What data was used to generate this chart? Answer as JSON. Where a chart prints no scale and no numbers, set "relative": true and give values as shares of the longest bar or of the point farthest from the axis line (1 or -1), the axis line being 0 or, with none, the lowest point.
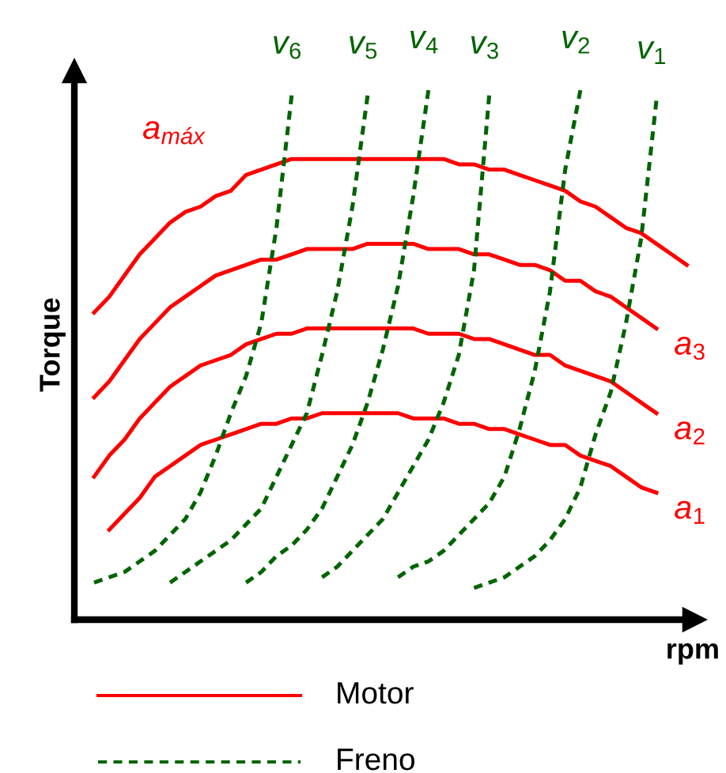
{
  "chart_data": {
    "type": "line",
    "relative": true,
    "xlabel": "rpm",
    "ylabel": "Torque",
    "grid": false,
    "marker": "none",
    "categories": [
      null,
      null,
      null,
      null,
      null,
      null,
      null,
      null,
      null,
      null,
      null,
      null,
      null,
      null,
      null,
      null,
      null,
      null,
      null,
      null,
      null,
      null,
      null,
      null,
      null,
      null,
      null,
      null,
      null,
      null,
      null,
      null,
      null,
      null,
      null,
      null,
      null,
      null,
      null,
      null
    ],
    "annotations": [
      "Motor",
      "Freno"
    ],
    "series": [
      {
        "name": "a$_{máx}$",
        "color": "#ff0000",
        "line_style": "solid",
        "values": [
          0.58,
          0.61,
          0.65,
          0.69,
          0.72,
          0.75,
          0.77,
          0.78,
          0.8,
          0.81,
          0.84,
          0.85,
          0.86,
          0.87,
          0.87,
          0.87,
          0.87,
          0.87,
          0.87,
          0.87,
          0.87,
          0.87,
          0.87,
          0.87,
          0.86,
          0.86,
          0.85,
          0.85,
          0.84,
          0.83,
          0.82,
          0.81,
          0.79,
          0.78,
          0.76,
          0.74,
          0.73,
          0.71,
          0.69,
          0.67
        ]
      },
      {
        "name": "a$_{3}$",
        "color": "#ff0000",
        "line_style": "solid",
        "values": [
          0.42,
          0.45,
          0.49,
          0.53,
          0.56,
          0.59,
          0.61,
          0.63,
          0.65,
          0.66,
          0.67,
          0.68,
          0.68,
          0.69,
          0.7,
          0.7,
          0.7,
          0.7,
          0.71,
          0.71,
          0.71,
          0.71,
          0.7,
          0.7,
          0.7,
          0.69,
          0.69,
          0.68,
          0.67,
          0.67,
          0.66,
          0.64,
          0.64,
          0.62,
          0.61,
          0.59,
          0.57,
          0.55,
          null,
          null
        ]
      },
      {
        "name": "a$_{2}$",
        "color": "#ff0000",
        "line_style": "solid",
        "values": [
          0.27,
          0.31,
          0.34,
          0.38,
          0.41,
          0.44,
          0.46,
          0.48,
          0.49,
          0.5,
          0.52,
          0.53,
          0.54,
          0.54,
          0.55,
          0.55,
          0.55,
          0.55,
          0.55,
          0.55,
          0.55,
          0.55,
          0.54,
          0.54,
          0.54,
          0.53,
          0.53,
          0.52,
          0.51,
          0.5,
          0.5,
          0.48,
          0.47,
          0.46,
          0.45,
          0.43,
          0.41,
          0.39,
          null,
          null
        ]
      },
      {
        "name": "a$_{1}$",
        "color": "#ff0000",
        "line_style": "solid",
        "values": [
          null,
          0.17,
          0.2,
          0.23,
          0.27,
          0.29,
          0.31,
          0.33,
          0.34,
          0.35,
          0.36,
          0.37,
          0.37,
          0.38,
          0.38,
          0.39,
          0.39,
          0.39,
          0.39,
          0.39,
          0.39,
          0.38,
          0.38,
          0.38,
          0.37,
          0.37,
          0.36,
          0.36,
          0.35,
          0.34,
          0.33,
          0.33,
          0.31,
          0.3,
          0.29,
          0.27,
          0.25,
          0.24,
          null,
          null
        ]
      },
      {
        "name": "v$_{6}$",
        "color": "#006400",
        "line_style": "dashed",
        "values": [
          0.07,
          0.08,
          0.09,
          0.11,
          0.13,
          0.16,
          0.19,
          0.24,
          0.31,
          0.39,
          0.46,
          0.56,
          0.74,
          0.99,
          null,
          null,
          null,
          null,
          null,
          null,
          null,
          null,
          null,
          null,
          null,
          null,
          null,
          null,
          null,
          null,
          null,
          null,
          null,
          null,
          null,
          null,
          null,
          null,
          null,
          null
        ]
      },
      {
        "name": "v$_{5}$",
        "color": "#006400",
        "line_style": "dashed",
        "values": [
          null,
          null,
          null,
          null,
          null,
          0.07,
          0.09,
          0.11,
          0.13,
          0.15,
          0.18,
          0.21,
          0.27,
          0.33,
          0.39,
          0.5,
          0.62,
          0.78,
          0.99,
          null,
          null,
          null,
          null,
          null,
          null,
          null,
          null,
          null,
          null,
          null,
          null,
          null,
          null,
          null,
          null,
          null,
          null,
          null,
          null,
          null
        ]
      },
      {
        "name": "v$_{4}$",
        "color": "#006400",
        "line_style": "dashed",
        "values": [
          null,
          null,
          null,
          null,
          null,
          null,
          null,
          null,
          null,
          null,
          0.07,
          0.09,
          0.12,
          0.14,
          0.17,
          0.21,
          0.27,
          0.33,
          0.41,
          0.51,
          0.63,
          0.8,
          1.0,
          null,
          null,
          null,
          null,
          null,
          null,
          null,
          null,
          null,
          null,
          null,
          null,
          null,
          null,
          null,
          null,
          null
        ]
      },
      {
        "name": "v$_{3}$",
        "color": "#006400",
        "line_style": "dashed",
        "values": [
          null,
          null,
          null,
          null,
          null,
          null,
          null,
          null,
          null,
          null,
          null,
          null,
          null,
          null,
          null,
          0.08,
          0.1,
          0.13,
          0.16,
          0.19,
          0.24,
          0.29,
          0.34,
          0.41,
          0.5,
          0.66,
          0.99,
          null,
          null,
          null,
          null,
          null,
          null,
          null,
          null,
          null,
          null,
          null,
          null,
          null
        ]
      },
      {
        "name": "v$_{2}$",
        "color": "#006400",
        "line_style": "dashed",
        "values": [
          null,
          null,
          null,
          null,
          null,
          null,
          null,
          null,
          null,
          null,
          null,
          null,
          null,
          null,
          null,
          null,
          null,
          null,
          null,
          null,
          0.08,
          0.1,
          0.11,
          0.13,
          0.16,
          0.19,
          0.22,
          0.27,
          0.36,
          0.47,
          0.62,
          0.85,
          1.0,
          null,
          null,
          null,
          null,
          null,
          null,
          null
        ]
      },
      {
        "name": "v$_{1}$",
        "color": "#006400",
        "line_style": "dashed",
        "values": [
          null,
          null,
          null,
          null,
          null,
          null,
          null,
          null,
          null,
          null,
          null,
          null,
          null,
          null,
          null,
          null,
          null,
          null,
          null,
          null,
          null,
          null,
          null,
          null,
          null,
          0.06,
          0.07,
          0.08,
          0.1,
          0.12,
          0.15,
          0.19,
          0.25,
          0.35,
          0.43,
          0.56,
          0.72,
          0.98,
          null,
          null
        ]
      }
    ]
  }
}
